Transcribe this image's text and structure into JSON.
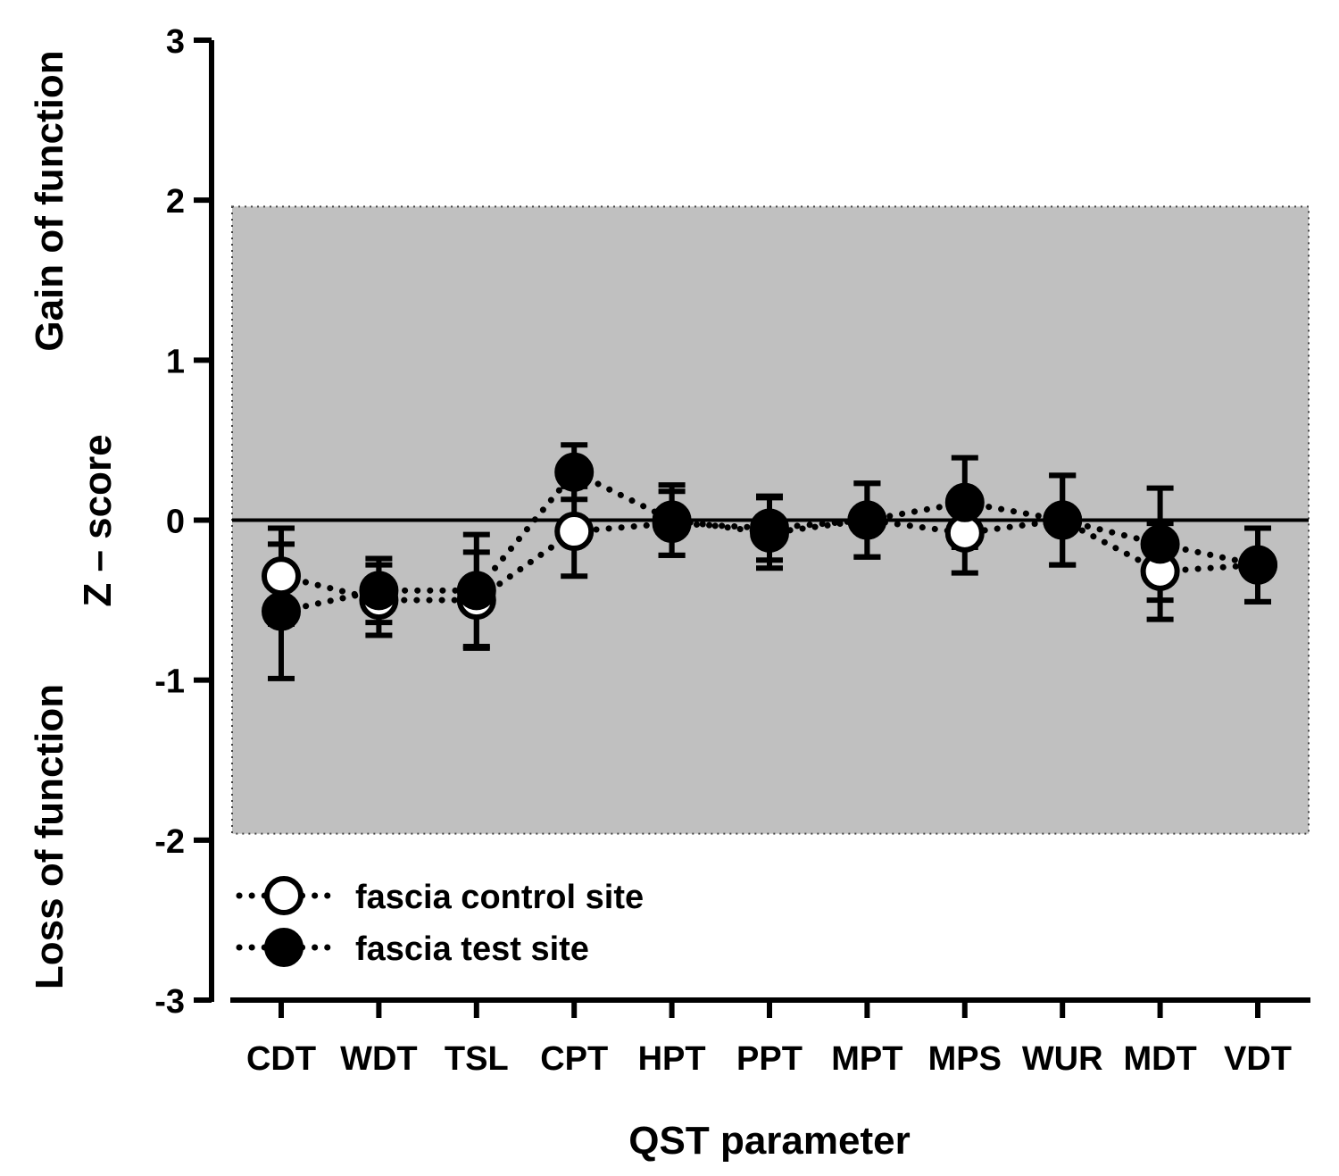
{
  "chart_data": {
    "type": "scatter",
    "xlabel": "QST parameter",
    "ylabel": "Z – score",
    "ylabel_upper": "Gain of function",
    "ylabel_lower": "Loss of function",
    "ylim": [
      -3,
      3
    ],
    "yticks": [
      "3",
      "2",
      "1",
      "0",
      "-1",
      "-2",
      "-3"
    ],
    "yticks_values": [
      3,
      2,
      1,
      0,
      -1,
      -2,
      -3
    ],
    "categories": [
      "CDT",
      "WDT",
      "TSL",
      "CPT",
      "HPT",
      "PPT",
      "MPT",
      "MPS",
      "WUR",
      "MDT",
      "VDT"
    ],
    "reference_band": {
      "low": -1.96,
      "high": 1.96,
      "color": "#c0c0c0"
    },
    "zero_line": 0,
    "series": [
      {
        "name": "fascia control site",
        "marker": "open-circle",
        "values": [
          -0.35,
          -0.5,
          -0.5,
          -0.07,
          -0.02,
          -0.05,
          0.0,
          -0.08,
          0.0,
          -0.32,
          -0.28
        ],
        "error": [
          0.3,
          0.22,
          0.3,
          0.28,
          0.2,
          0.2,
          0.23,
          0.25,
          0.28,
          0.3,
          0.23
        ]
      },
      {
        "name": "fascia test site",
        "marker": "filled-circle",
        "values": [
          -0.57,
          -0.44,
          -0.44,
          0.3,
          0.0,
          -0.08,
          0.0,
          0.11,
          0.0,
          -0.15,
          -0.28
        ],
        "error": [
          0.42,
          0.2,
          0.35,
          0.17,
          0.22,
          0.22,
          0.23,
          0.28,
          0.28,
          0.35,
          0.23
        ]
      }
    ],
    "legend": {
      "position": "bottom-left"
    },
    "colors": {
      "band": "#c0c0c0",
      "marker_fill_open": "#ffffff",
      "marker_fill_closed": "#000000",
      "line": "#000000"
    }
  }
}
